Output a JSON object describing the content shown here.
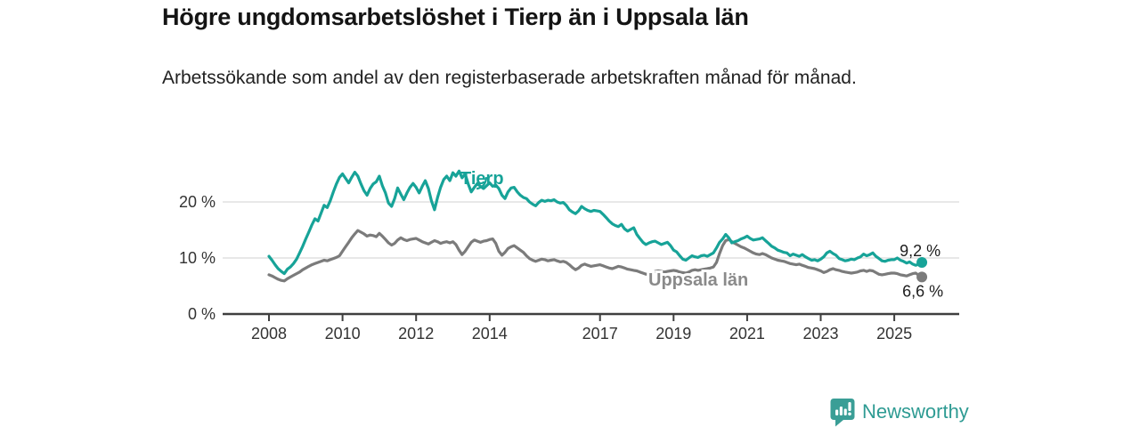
{
  "header": {
    "title": "Högre ungdomsarbetslöshet i Tierp än i Uppsala län",
    "subtitle": "Arbetssökande som andel av den registerbaserade arbetskraften månad för månad."
  },
  "chart_data": {
    "type": "line",
    "title": "Högre ungdomsarbetslöshet i Tierp än i Uppsala län",
    "subtitle": "Arbetssökande som andel av den registerbaserade arbetskraften månad för månad.",
    "x_start_year": 2008,
    "x_months_per_point": 1,
    "x_tick_years": [
      2008,
      2010,
      2012,
      2014,
      2017,
      2019,
      2021,
      2023,
      2025
    ],
    "y_ticks": [
      {
        "value": 0,
        "label": "0 %"
      },
      {
        "value": 10,
        "label": "10 %"
      },
      {
        "value": 20,
        "label": "20 %"
      }
    ],
    "ylim": [
      0,
      27
    ],
    "grid": "horizontal",
    "legend_position": "inline-annotations",
    "axis_color": "#3f3f3f",
    "grid_color": "#d9d9d9",
    "series": [
      {
        "name": "Uppsala län",
        "color": "#7b7b7b",
        "label_color": "#8a8a8a",
        "end_label": "6,6 %",
        "end_value": 6.6,
        "values": [
          7.0,
          6.8,
          6.5,
          6.2,
          6.0,
          5.9,
          6.3,
          6.6,
          6.9,
          7.2,
          7.5,
          7.9,
          8.2,
          8.5,
          8.8,
          9.0,
          9.2,
          9.4,
          9.6,
          9.5,
          9.7,
          9.9,
          10.1,
          10.4,
          11.2,
          12.0,
          12.8,
          13.6,
          14.3,
          14.9,
          14.6,
          14.3,
          13.9,
          14.1,
          14.0,
          13.8,
          14.4,
          13.9,
          13.3,
          12.7,
          12.3,
          12.6,
          13.2,
          13.6,
          13.3,
          13.1,
          13.3,
          13.4,
          13.5,
          13.2,
          12.9,
          12.7,
          12.5,
          12.8,
          13.1,
          12.9,
          12.6,
          12.8,
          12.9,
          12.7,
          12.9,
          12.4,
          11.4,
          10.6,
          11.2,
          12.0,
          12.8,
          13.2,
          13.0,
          12.8,
          13.0,
          13.1,
          13.3,
          13.4,
          12.6,
          11.2,
          10.5,
          11.0,
          11.7,
          12.0,
          12.2,
          11.8,
          11.4,
          11.0,
          10.4,
          9.9,
          9.6,
          9.4,
          9.6,
          9.8,
          9.7,
          9.5,
          9.6,
          9.7,
          9.5,
          9.3,
          9.4,
          9.2,
          8.8,
          8.3,
          7.9,
          8.2,
          8.7,
          8.9,
          8.7,
          8.5,
          8.6,
          8.7,
          8.8,
          8.6,
          8.4,
          8.2,
          8.1,
          8.3,
          8.5,
          8.4,
          8.2,
          8.0,
          7.9,
          7.8,
          7.7,
          7.5,
          7.3,
          7.1,
          7.2,
          7.4,
          7.6,
          7.7,
          7.6,
          7.5,
          7.6,
          7.7,
          7.8,
          7.7,
          7.5,
          7.4,
          7.3,
          7.5,
          7.8,
          7.9,
          7.8,
          7.9,
          8.0,
          8.1,
          8.2,
          8.4,
          9.2,
          10.8,
          12.2,
          13.1,
          13.3,
          12.9,
          12.6,
          12.3,
          12.0,
          11.8,
          11.5,
          11.2,
          10.9,
          10.7,
          10.6,
          10.8,
          10.6,
          10.3,
          10.0,
          9.8,
          9.6,
          9.5,
          9.4,
          9.2,
          9.0,
          8.9,
          8.8,
          8.9,
          8.7,
          8.5,
          8.3,
          8.2,
          8.1,
          7.9,
          7.7,
          7.4,
          7.6,
          7.9,
          8.1,
          7.9,
          7.8,
          7.6,
          7.5,
          7.4,
          7.3,
          7.4,
          7.5,
          7.7,
          7.8,
          7.6,
          7.8,
          7.7,
          7.4,
          7.1,
          7.0,
          7.1,
          7.2,
          7.3,
          7.3,
          7.2,
          7.0,
          6.9,
          6.8,
          7.0,
          7.2,
          7.3,
          6.9,
          6.6
        ]
      },
      {
        "name": "Tierp",
        "color": "#17a398",
        "label_color": "#17a398",
        "end_label": "9,2 %",
        "end_value": 9.2,
        "values": [
          10.3,
          9.6,
          8.8,
          8.1,
          7.6,
          7.2,
          8.0,
          8.4,
          9.0,
          9.8,
          10.9,
          12.1,
          13.4,
          14.6,
          15.9,
          17.0,
          16.6,
          18.0,
          19.4,
          19.0,
          20.2,
          21.8,
          23.2,
          24.4,
          25.0,
          24.2,
          23.4,
          24.4,
          25.3,
          24.6,
          23.2,
          22.0,
          21.2,
          22.4,
          23.2,
          23.6,
          24.6,
          22.9,
          21.6,
          19.8,
          19.2,
          20.6,
          22.5,
          21.4,
          20.4,
          21.6,
          22.6,
          23.3,
          22.6,
          21.6,
          22.8,
          23.8,
          22.4,
          20.2,
          18.6,
          20.8,
          22.6,
          24.0,
          24.6,
          23.8,
          25.2,
          24.6,
          25.5,
          24.3,
          25.0,
          23.2,
          21.8,
          22.6,
          23.3,
          22.8,
          22.4,
          22.9,
          23.4,
          22.8,
          23.0,
          22.4,
          21.2,
          20.6,
          21.8,
          22.5,
          22.6,
          21.8,
          21.2,
          20.8,
          20.6,
          20.0,
          19.6,
          19.3,
          19.9,
          20.3,
          20.1,
          20.3,
          20.2,
          20.4,
          20.0,
          19.8,
          19.9,
          19.4,
          18.6,
          18.2,
          17.9,
          18.4,
          19.2,
          18.8,
          18.5,
          18.3,
          18.5,
          18.4,
          18.3,
          17.8,
          17.2,
          16.6,
          16.1,
          15.8,
          15.6,
          16.0,
          15.2,
          14.8,
          15.1,
          15.4,
          14.2,
          13.5,
          12.8,
          12.4,
          12.7,
          12.9,
          13.0,
          12.7,
          12.4,
          12.6,
          12.8,
          12.2,
          11.4,
          11.1,
          10.4,
          9.8,
          9.6,
          10.0,
          10.4,
          10.2,
          10.1,
          10.4,
          10.5,
          10.3,
          10.6,
          10.9,
          11.8,
          12.8,
          13.4,
          14.2,
          13.6,
          12.7,
          12.9,
          13.1,
          13.4,
          13.6,
          13.9,
          13.5,
          13.2,
          13.3,
          13.4,
          13.6,
          13.1,
          12.6,
          12.1,
          11.8,
          11.4,
          11.2,
          11.0,
          10.9,
          10.4,
          10.7,
          10.5,
          10.3,
          10.6,
          10.2,
          9.9,
          9.6,
          9.7,
          9.5,
          9.8,
          10.2,
          10.9,
          11.2,
          10.8,
          10.5,
          9.9,
          9.7,
          9.5,
          9.6,
          9.8,
          9.7,
          10.0,
          10.2,
          10.7,
          10.4,
          10.6,
          10.9,
          10.3,
          9.9,
          9.5,
          9.4,
          9.6,
          9.7,
          9.7,
          10.0,
          9.6,
          9.4,
          9.1,
          9.3,
          8.9,
          8.7,
          8.9,
          9.2
        ]
      }
    ]
  },
  "footer": {
    "brand": "Newsworthy",
    "logo_icon": "bar-chart-speech-bubble-icon",
    "brand_color": "#2e9b93"
  }
}
